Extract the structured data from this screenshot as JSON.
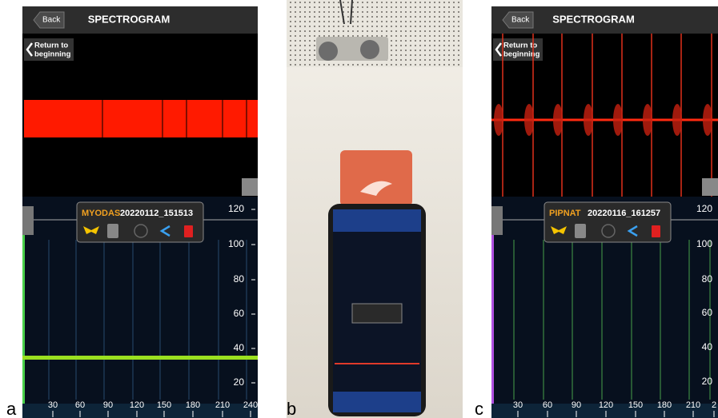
{
  "panels": [
    {
      "label": "a",
      "header": {
        "back": "Back",
        "title": "SPECTROGRAM"
      },
      "return_button": [
        "Return to",
        "beginning"
      ],
      "popup": {
        "species": "MYODAS",
        "recording": "20220112_151513"
      },
      "y_axis_labels": [
        120,
        100,
        80,
        60,
        40,
        20
      ],
      "x_axis_labels": [
        30,
        60,
        90,
        120,
        150,
        180,
        210,
        240
      ]
    },
    {
      "label": "b"
    },
    {
      "label": "c",
      "header": {
        "back": "Back",
        "title": "SPECTROGRAM"
      },
      "return_button": [
        "Return to",
        "beginning"
      ],
      "popup": {
        "species": "PIPNAT",
        "recording": "20220116_161257"
      },
      "y_axis_labels": [
        120,
        100,
        80,
        60,
        40,
        20
      ],
      "x_axis_labels": [
        30,
        60,
        90,
        120,
        150,
        180,
        210,
        2
      ]
    }
  ]
}
